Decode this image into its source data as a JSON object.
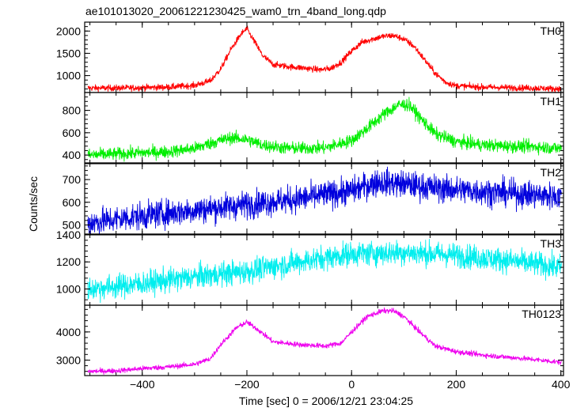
{
  "title": "ae101013020_20061221230425_wam0_trn_4band_long.qdp",
  "chart_data": {
    "type": "line",
    "title": "ae101013020_20061221230425_wam0_trn_4band_long.qdp",
    "xlabel": "Time [sec] 0 = 2006/12/21 23:04:25",
    "ylabel": "Counts/sec",
    "xlim": [
      -510,
      405
    ],
    "x_ticks": [
      -400,
      -200,
      0,
      200,
      400
    ],
    "grid": false,
    "legend": "none",
    "panels": [
      {
        "name": "TH0",
        "color": "#ff0000",
        "ylim": [
          620,
          2200
        ],
        "y_ticks": [
          1000,
          1500,
          2000
        ],
        "noise": 35,
        "x": [
          -500,
          -450,
          -400,
          -350,
          -300,
          -270,
          -250,
          -230,
          -210,
          -200,
          -190,
          -170,
          -150,
          -120,
          -90,
          -60,
          -40,
          -20,
          0,
          20,
          40,
          60,
          80,
          100,
          120,
          140,
          160,
          180,
          200,
          250,
          300,
          350,
          400
        ],
        "y": [
          720,
          720,
          730,
          740,
          780,
          880,
          1150,
          1600,
          1950,
          2050,
          1850,
          1450,
          1250,
          1200,
          1170,
          1130,
          1160,
          1300,
          1550,
          1750,
          1820,
          1880,
          1900,
          1820,
          1650,
          1350,
          1050,
          850,
          770,
          740,
          730,
          720,
          700
        ]
      },
      {
        "name": "TH1",
        "color": "#00ee00",
        "ylim": [
          330,
          960
        ],
        "y_ticks": [
          400,
          600,
          800
        ],
        "noise": 28,
        "x": [
          -500,
          -450,
          -400,
          -350,
          -300,
          -260,
          -230,
          -200,
          -170,
          -130,
          -100,
          -50,
          0,
          30,
          60,
          90,
          110,
          130,
          160,
          200,
          250,
          300,
          350,
          400
        ],
        "y": [
          400,
          410,
          420,
          430,
          460,
          520,
          555,
          540,
          490,
          465,
          460,
          465,
          530,
          640,
          760,
          850,
          850,
          740,
          590,
          520,
          490,
          480,
          475,
          460
        ]
      },
      {
        "name": "TH2",
        "color": "#0000dd",
        "ylim": [
          460,
          770
        ],
        "y_ticks": [
          500,
          600,
          700
        ],
        "noise": 30,
        "x": [
          -500,
          -400,
          -300,
          -200,
          -100,
          0,
          50,
          100,
          150,
          200,
          300,
          400
        ],
        "y": [
          510,
          540,
          565,
          590,
          615,
          650,
          690,
          680,
          665,
          655,
          640,
          625
        ]
      },
      {
        "name": "TH3",
        "color": "#00eeee",
        "ylim": [
          880,
          1400
        ],
        "y_ticks": [
          1000,
          1200,
          1400
        ],
        "noise": 45,
        "x": [
          -500,
          -400,
          -300,
          -200,
          -100,
          0,
          100,
          200,
          300,
          400
        ],
        "y": [
          1000,
          1040,
          1090,
          1130,
          1200,
          1260,
          1270,
          1250,
          1210,
          1160
        ]
      },
      {
        "name": "TH0123",
        "color": "#ee00ee",
        "ylim": [
          2450,
          4950
        ],
        "y_ticks": [
          3000,
          4000
        ],
        "noise": 45,
        "x": [
          -500,
          -450,
          -400,
          -350,
          -300,
          -270,
          -250,
          -220,
          -200,
          -180,
          -150,
          -100,
          -50,
          -20,
          0,
          30,
          60,
          80,
          100,
          130,
          160,
          200,
          250,
          300,
          350,
          400
        ],
        "y": [
          2600,
          2620,
          2700,
          2760,
          2850,
          3050,
          3550,
          4150,
          4350,
          4100,
          3650,
          3550,
          3500,
          3600,
          4000,
          4550,
          4750,
          4750,
          4550,
          4000,
          3500,
          3300,
          3180,
          3100,
          3020,
          2920
        ]
      }
    ]
  }
}
